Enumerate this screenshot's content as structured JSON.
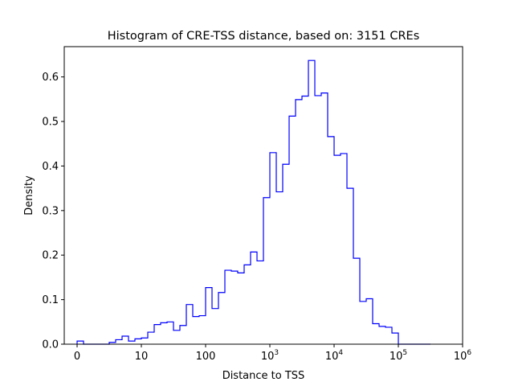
{
  "chart_data": {
    "type": "histogram",
    "title": "Histogram of CRE-TSS distance, based on: 3151 CREs",
    "xlabel": "Distance to TSS",
    "ylabel": "Density",
    "x_scale": "symlog",
    "xlim": [
      -0.2,
      6.0
    ],
    "ylim": [
      0,
      0.668
    ],
    "grid": false,
    "legend": "none",
    "line_color": "#0000ff",
    "x_ticks": [
      {
        "pos": 0,
        "base": "0",
        "exp": ""
      },
      {
        "pos": 1,
        "base": "10",
        "exp": ""
      },
      {
        "pos": 2,
        "base": "100",
        "exp": ""
      },
      {
        "pos": 3,
        "base": "10",
        "exp": "3"
      },
      {
        "pos": 4,
        "base": "10",
        "exp": "4"
      },
      {
        "pos": 5,
        "base": "10",
        "exp": "5"
      },
      {
        "pos": 6,
        "base": "10",
        "exp": "6"
      }
    ],
    "y_ticks": [
      0.0,
      0.1,
      0.2,
      0.3,
      0.4,
      0.5,
      0.6
    ],
    "y_tick_labels": [
      "0.0",
      "0.1",
      "0.2",
      "0.3",
      "0.4",
      "0.5",
      "0.6"
    ],
    "bin_edges": [
      0,
      0.1,
      0.2,
      0.3,
      0.4,
      0.5,
      0.6,
      0.7,
      0.8,
      0.9,
      1.0,
      1.1,
      1.2,
      1.3,
      1.4,
      1.5,
      1.6,
      1.7,
      1.8,
      1.9,
      2.0,
      2.1,
      2.2,
      2.3,
      2.4,
      2.5,
      2.6,
      2.7,
      2.8,
      2.9,
      3.0,
      3.1,
      3.2,
      3.3,
      3.4,
      3.5,
      3.6,
      3.7,
      3.8,
      3.9,
      4.0,
      4.1,
      4.2,
      4.3,
      4.4,
      4.5,
      4.6,
      4.7,
      4.8,
      4.9,
      5.0,
      5.1,
      5.2,
      5.3,
      5.4,
      5.5
    ],
    "densities": [
      0.007,
      0.0,
      0.0,
      0.0,
      0.0,
      0.004,
      0.01,
      0.018,
      0.007,
      0.012,
      0.014,
      0.027,
      0.044,
      0.048,
      0.05,
      0.031,
      0.042,
      0.089,
      0.062,
      0.064,
      0.127,
      0.08,
      0.116,
      0.166,
      0.164,
      0.16,
      0.178,
      0.207,
      0.187,
      0.329,
      0.43,
      0.342,
      0.404,
      0.512,
      0.549,
      0.557,
      0.637,
      0.558,
      0.564,
      0.466,
      0.424,
      0.428,
      0.35,
      0.193,
      0.096,
      0.102,
      0.046,
      0.04,
      0.038,
      0.025,
      0.0,
      0.0,
      0.0,
      0.0,
      0.0
    ]
  }
}
